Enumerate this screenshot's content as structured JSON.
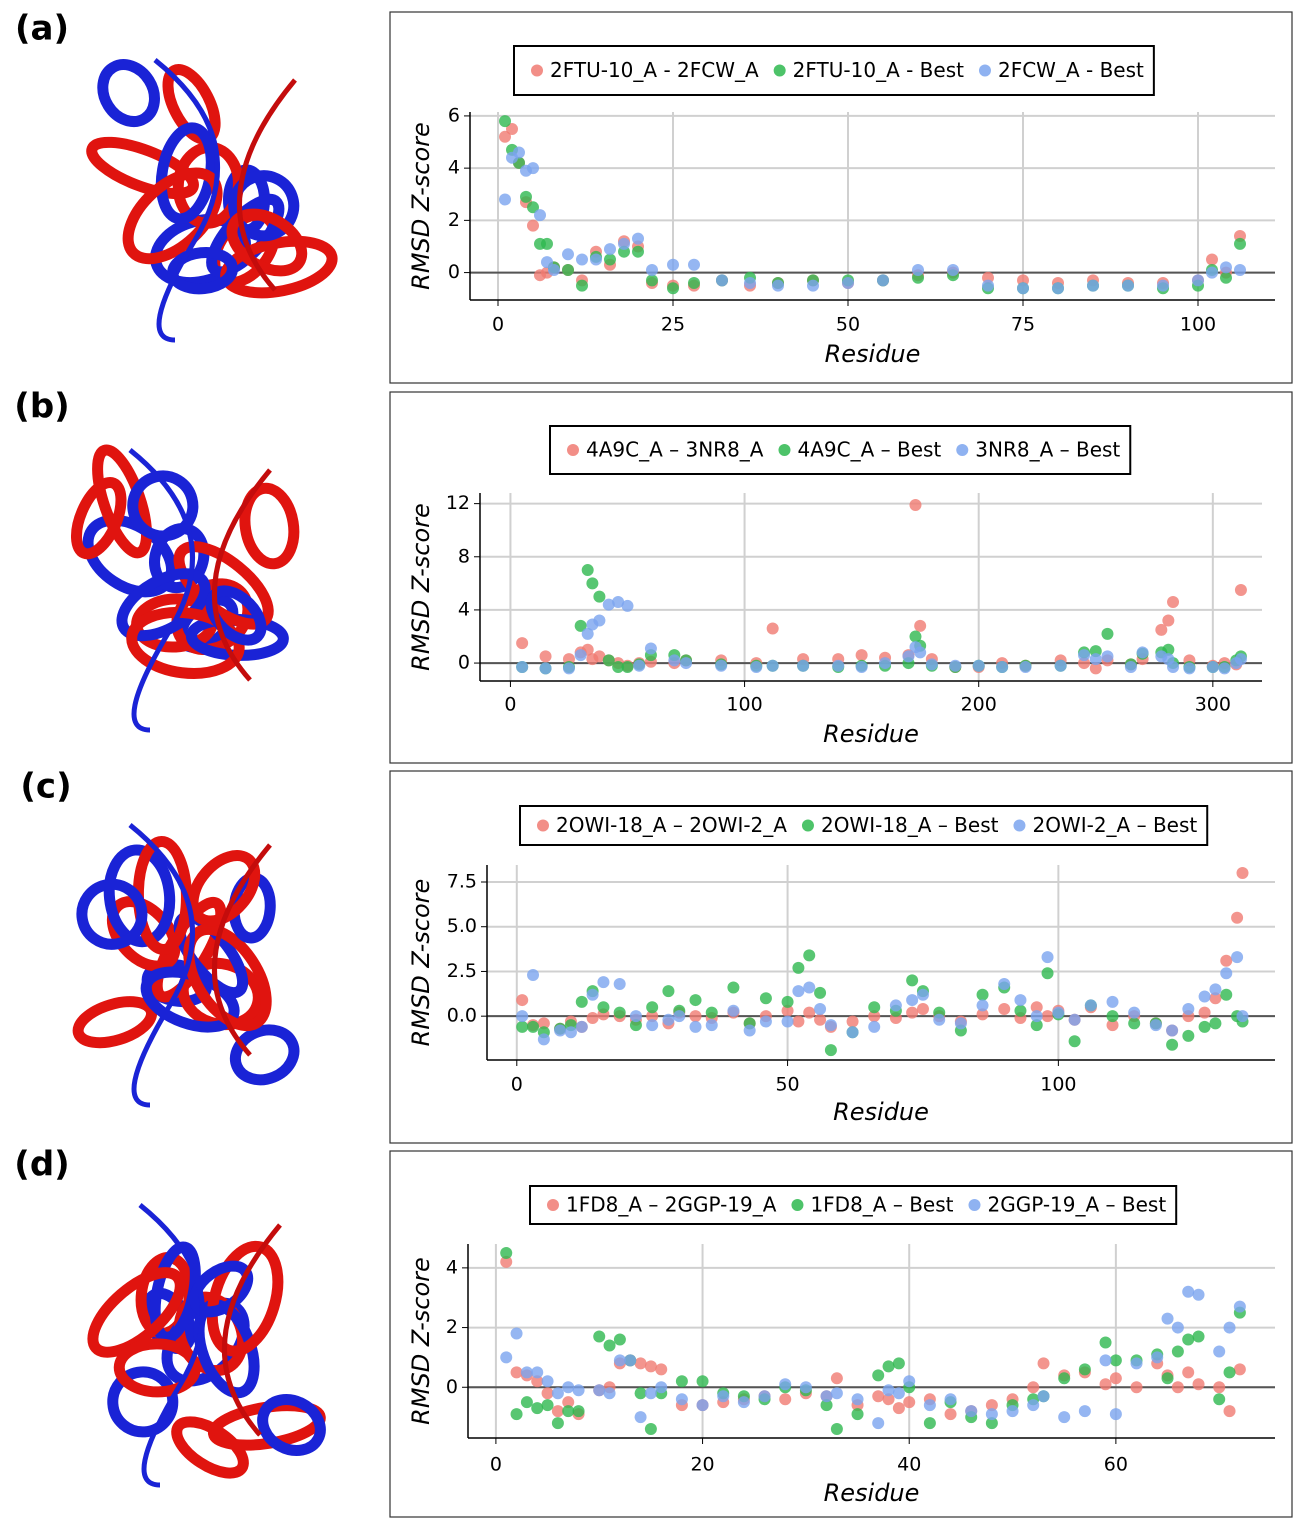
{
  "chart_data": [
    {
      "type": "scatter",
      "panel_label": "(a)",
      "xlabel": "Residue",
      "ylabel": "RMSD Z-score",
      "xlim": [
        -4,
        111
      ],
      "xticks": [
        0,
        25,
        50,
        75,
        100
      ],
      "ylim": [
        -1.05,
        6.15
      ],
      "yticks": [
        0,
        2,
        4,
        6
      ],
      "grid": true,
      "zero_line": 0,
      "x": [
        1,
        2,
        3,
        4,
        5,
        6,
        7,
        8,
        10,
        12,
        14,
        16,
        18,
        20,
        22,
        25,
        28,
        32,
        36,
        40,
        45,
        50,
        55,
        60,
        65,
        70,
        75,
        80,
        85,
        90,
        95,
        100,
        102,
        104,
        106
      ],
      "series": [
        {
          "name": "2FTU-10_A - 2FCW_A",
          "color": "#f07a72",
          "values": [
            5.2,
            5.5,
            4.2,
            2.7,
            1.8,
            -0.1,
            0.0,
            0.2,
            0.1,
            -0.3,
            0.8,
            0.3,
            1.2,
            1.0,
            -0.4,
            -0.5,
            -0.5,
            -0.3,
            -0.5,
            -0.4,
            -0.3,
            -0.4,
            -0.3,
            -0.1,
            0.0,
            -0.2,
            -0.3,
            -0.4,
            -0.3,
            -0.4,
            -0.4,
            -0.3,
            0.5,
            0.0,
            1.4
          ]
        },
        {
          "name": "2FTU-10_A - Best",
          "color": "#2eb84f",
          "values": [
            5.8,
            4.7,
            4.2,
            2.9,
            2.5,
            1.1,
            1.1,
            0.2,
            0.1,
            -0.5,
            0.6,
            0.5,
            0.8,
            0.8,
            -0.3,
            -0.6,
            -0.4,
            -0.3,
            -0.2,
            -0.4,
            -0.3,
            -0.3,
            -0.3,
            -0.2,
            -0.1,
            -0.6,
            -0.6,
            -0.6,
            -0.5,
            -0.5,
            -0.6,
            -0.5,
            0.1,
            -0.2,
            1.1
          ]
        },
        {
          "name": "2FCW_A - Best",
          "color": "#7ba4ef",
          "values": [
            2.8,
            4.4,
            4.6,
            3.9,
            4.0,
            2.2,
            0.4,
            0.1,
            0.7,
            0.5,
            0.5,
            0.9,
            1.1,
            1.3,
            0.1,
            0.3,
            0.3,
            -0.3,
            -0.4,
            -0.5,
            -0.5,
            -0.4,
            -0.3,
            0.1,
            0.1,
            -0.5,
            -0.6,
            -0.6,
            -0.5,
            -0.5,
            -0.5,
            -0.3,
            0.0,
            0.2,
            0.1
          ]
        }
      ]
    },
    {
      "type": "scatter",
      "panel_label": "(b)",
      "xlabel": "Residue",
      "ylabel": "RMSD Z-score",
      "xlim": [
        -13,
        321
      ],
      "xticks": [
        0,
        100,
        200,
        300
      ],
      "ylim": [
        -1.35,
        12.8
      ],
      "yticks": [
        0,
        4,
        8,
        12
      ],
      "grid": true,
      "zero_line": 0,
      "x": [
        5,
        15,
        25,
        30,
        33,
        35,
        38,
        42,
        46,
        50,
        55,
        60,
        70,
        75,
        90,
        105,
        112,
        125,
        140,
        150,
        160,
        170,
        173,
        175,
        180,
        190,
        200,
        210,
        220,
        235,
        245,
        250,
        255,
        265,
        270,
        278,
        281,
        283,
        290,
        300,
        305,
        310,
        312
      ],
      "series": [
        {
          "name": "4A9C_A – 3NR8_A",
          "color": "#f07a72",
          "values": [
            1.5,
            0.5,
            0.3,
            0.8,
            1.0,
            0.3,
            0.5,
            0.2,
            0.0,
            -0.2,
            0.0,
            0.1,
            0.0,
            0.2,
            0.2,
            0.0,
            2.6,
            0.3,
            0.3,
            0.6,
            0.4,
            0.6,
            11.9,
            2.8,
            0.3,
            -0.3,
            -0.3,
            0.0,
            -0.2,
            0.2,
            0.0,
            -0.4,
            0.2,
            -0.1,
            0.3,
            2.5,
            3.2,
            4.6,
            0.2,
            -0.2,
            0.0,
            -0.1,
            5.5
          ]
        },
        {
          "name": "4A9C_A – Best",
          "color": "#2eb84f",
          "values": [
            -0.3,
            -0.4,
            -0.3,
            2.8,
            7.0,
            6.0,
            5.0,
            0.2,
            -0.3,
            -0.3,
            -0.1,
            0.6,
            0.6,
            0.2,
            -0.1,
            -0.2,
            -0.2,
            -0.2,
            -0.3,
            -0.2,
            -0.2,
            0.0,
            2.0,
            1.3,
            -0.2,
            -0.3,
            -0.2,
            -0.3,
            -0.2,
            -0.2,
            0.8,
            0.9,
            2.2,
            -0.1,
            0.7,
            0.8,
            1.0,
            0.0,
            -0.3,
            -0.3,
            -0.3,
            0.2,
            0.5
          ]
        },
        {
          "name": "3NR8_A – Best",
          "color": "#7ba4ef",
          "values": [
            -0.3,
            -0.4,
            -0.4,
            0.6,
            2.2,
            2.9,
            3.2,
            4.4,
            4.6,
            4.3,
            -0.2,
            1.1,
            0.2,
            0.0,
            -0.2,
            -0.3,
            -0.2,
            -0.2,
            -0.2,
            -0.3,
            0.0,
            0.5,
            1.2,
            0.8,
            -0.1,
            -0.2,
            -0.2,
            -0.3,
            -0.3,
            -0.2,
            0.6,
            0.3,
            0.5,
            -0.3,
            0.8,
            0.5,
            0.3,
            -0.3,
            -0.4,
            -0.3,
            -0.4,
            0.0,
            0.3
          ]
        }
      ]
    },
    {
      "type": "scatter",
      "panel_label": "(c)",
      "xlabel": "Residue",
      "ylabel": "RMSD Z-score",
      "xlim": [
        -5.5,
        140
      ],
      "xticks": [
        0,
        50,
        100
      ],
      "ylim": [
        -2.45,
        8.45
      ],
      "yticks": [
        {
          "value": 0,
          "label": "0.0"
        },
        {
          "value": 2.5,
          "label": "2.5"
        },
        {
          "value": 5,
          "label": "5.0"
        },
        {
          "value": 7.5,
          "label": "7.5"
        }
      ],
      "grid": true,
      "zero_line": 0,
      "x": [
        1,
        3,
        5,
        8,
        10,
        12,
        14,
        16,
        19,
        22,
        25,
        28,
        30,
        33,
        36,
        40,
        43,
        46,
        50,
        52,
        54,
        56,
        58,
        62,
        66,
        70,
        73,
        75,
        78,
        82,
        86,
        90,
        93,
        96,
        98,
        100,
        103,
        106,
        110,
        114,
        118,
        121,
        124,
        127,
        129,
        131,
        133,
        134
      ],
      "series": [
        {
          "name": "2OWI-18_A – 2OWI-2_A",
          "color": "#f07a72",
          "values": [
            0.9,
            -0.5,
            -0.4,
            -0.7,
            -0.3,
            -0.6,
            -0.1,
            0.1,
            0.0,
            -0.2,
            0.0,
            -0.4,
            0.2,
            0.0,
            -0.1,
            0.2,
            -0.4,
            0.0,
            0.3,
            -0.3,
            0.2,
            -0.2,
            -0.6,
            -0.3,
            0.0,
            -0.1,
            0.2,
            0.4,
            0.0,
            -0.3,
            0.1,
            0.4,
            -0.1,
            0.5,
            0.0,
            0.3,
            -0.2,
            0.5,
            -0.5,
            0.0,
            -0.4,
            -0.8,
            0.0,
            0.2,
            1.0,
            3.1,
            5.5,
            8.0
          ]
        },
        {
          "name": "2OWI-18_A – Best",
          "color": "#2eb84f",
          "values": [
            -0.6,
            -0.6,
            -0.9,
            -0.7,
            -0.5,
            0.8,
            1.4,
            0.5,
            0.2,
            -0.5,
            0.5,
            1.4,
            0.3,
            0.9,
            0.2,
            1.6,
            -0.4,
            1.0,
            0.8,
            2.7,
            3.4,
            1.3,
            -1.9,
            -0.9,
            0.5,
            0.3,
            2.0,
            1.4,
            0.2,
            -0.8,
            1.2,
            1.6,
            0.3,
            -0.5,
            2.4,
            0.1,
            -1.4,
            0.6,
            0.0,
            -0.4,
            -0.4,
            -1.6,
            -1.1,
            -0.6,
            -0.4,
            1.2,
            0.0,
            -0.3
          ]
        },
        {
          "name": "2OWI-2_A – Best",
          "color": "#7ba4ef",
          "values": [
            0.0,
            2.3,
            -1.3,
            -0.8,
            -0.9,
            -0.6,
            1.2,
            1.9,
            1.8,
            0.0,
            -0.5,
            -0.2,
            0.0,
            -0.6,
            -0.5,
            0.3,
            -0.8,
            -0.3,
            -0.3,
            1.4,
            1.6,
            0.4,
            -0.5,
            -0.9,
            -0.6,
            0.6,
            0.9,
            1.2,
            -0.2,
            -0.4,
            0.6,
            1.8,
            0.9,
            0.0,
            3.3,
            0.2,
            -0.2,
            0.6,
            0.8,
            0.2,
            -0.5,
            -0.8,
            0.4,
            1.1,
            1.5,
            2.4,
            3.3,
            0.0
          ]
        }
      ]
    },
    {
      "type": "scatter",
      "panel_label": "(d)",
      "xlabel": "Residue",
      "ylabel": "RMSD Z-score",
      "xlim": [
        -2.7,
        75.4
      ],
      "xticks": [
        0,
        20,
        40,
        60
      ],
      "ylim": [
        -1.7,
        4.8
      ],
      "yticks": [
        0,
        2,
        4
      ],
      "grid": true,
      "zero_line": 0,
      "x": [
        1,
        2,
        3,
        4,
        5,
        6,
        7,
        8,
        10,
        11,
        12,
        13,
        14,
        15,
        16,
        18,
        20,
        22,
        24,
        26,
        28,
        30,
        32,
        33,
        35,
        37,
        38,
        39,
        40,
        42,
        44,
        46,
        48,
        50,
        52,
        53,
        55,
        57,
        59,
        60,
        62,
        64,
        65,
        66,
        67,
        68,
        70,
        71,
        72
      ],
      "series": [
        {
          "name": "1FD8_A – 2GGP-19_A",
          "color": "#f07a72",
          "values": [
            4.2,
            0.5,
            0.4,
            0.2,
            -0.2,
            -0.8,
            -0.5,
            -0.9,
            -0.1,
            0.0,
            0.8,
            0.9,
            0.8,
            0.7,
            0.6,
            -0.6,
            -0.6,
            -0.5,
            -0.4,
            -0.3,
            -0.4,
            -0.2,
            -0.3,
            0.3,
            -0.6,
            -0.3,
            -0.4,
            -0.7,
            -0.5,
            -0.4,
            -0.9,
            -0.8,
            -0.6,
            -0.4,
            0.0,
            0.8,
            0.4,
            0.5,
            0.1,
            0.3,
            0.0,
            0.8,
            0.4,
            0.0,
            0.5,
            0.1,
            0.0,
            -0.8,
            0.6
          ]
        },
        {
          "name": "1FD8_A – Best",
          "color": "#2eb84f",
          "values": [
            4.5,
            -0.9,
            -0.5,
            -0.7,
            -0.6,
            -1.2,
            -0.8,
            -0.8,
            1.7,
            1.4,
            1.6,
            0.9,
            -0.2,
            -1.4,
            -0.2,
            0.2,
            0.2,
            -0.2,
            -0.3,
            -0.4,
            0.0,
            -0.1,
            -0.6,
            -1.4,
            -0.9,
            0.4,
            0.7,
            0.8,
            0.0,
            -1.2,
            -0.5,
            -1.0,
            -1.2,
            -0.6,
            -0.4,
            -0.3,
            0.3,
            0.6,
            1.5,
            0.9,
            0.9,
            1.1,
            0.3,
            1.2,
            1.6,
            1.7,
            -0.4,
            0.5,
            2.5
          ]
        },
        {
          "name": "2GGP-19_A – Best",
          "color": "#7ba4ef",
          "values": [
            1.0,
            1.8,
            0.5,
            0.5,
            0.2,
            -0.2,
            0.0,
            -0.1,
            -0.1,
            -0.2,
            0.9,
            0.9,
            -1.0,
            -0.2,
            0.0,
            -0.4,
            -0.6,
            -0.3,
            -0.5,
            -0.3,
            0.1,
            0.0,
            -0.3,
            -0.2,
            -0.4,
            -1.2,
            -0.1,
            -0.2,
            0.2,
            -0.6,
            -0.4,
            -0.8,
            -0.9,
            -0.8,
            -0.6,
            -0.3,
            -1.0,
            -0.8,
            0.9,
            -0.9,
            0.8,
            1.0,
            2.3,
            2.0,
            3.2,
            3.1,
            1.2,
            2.0,
            2.7
          ]
        }
      ]
    }
  ]
}
